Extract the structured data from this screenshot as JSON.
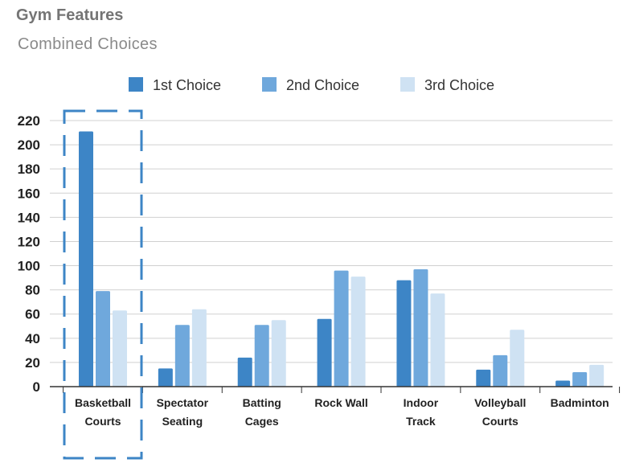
{
  "chart": {
    "title": "Gym Features",
    "subtitle": "Combined Choices"
  },
  "chart_data": {
    "type": "bar",
    "title": "Gym Features",
    "subtitle": "Combined Choices",
    "xlabel": "",
    "ylabel": "",
    "ylim": [
      0,
      220
    ],
    "yticks": [
      0,
      20,
      40,
      60,
      80,
      100,
      120,
      140,
      160,
      180,
      200,
      220
    ],
    "grid": true,
    "legend_position": "top",
    "categories": [
      [
        "Basketball",
        "Courts"
      ],
      [
        "Spectator",
        "Seating"
      ],
      [
        "Batting",
        "Cages"
      ],
      [
        "Rock Wall"
      ],
      [
        "Indoor",
        "Track"
      ],
      [
        "Volleyball",
        "Courts"
      ],
      [
        "Badminton"
      ]
    ],
    "series": [
      {
        "name": "1st Choice",
        "color": "#3d85c6",
        "values": [
          211,
          15,
          24,
          56,
          88,
          14,
          5
        ]
      },
      {
        "name": "2nd Choice",
        "color": "#6fa8dc",
        "values": [
          79,
          51,
          51,
          96,
          97,
          26,
          12
        ]
      },
      {
        "name": "3rd Choice",
        "color": "#cfe2f3",
        "values": [
          63,
          64,
          55,
          91,
          77,
          47,
          18
        ]
      }
    ],
    "highlight": {
      "category_index": 0,
      "color": "#3d85c6",
      "style": "dashed-box"
    }
  }
}
